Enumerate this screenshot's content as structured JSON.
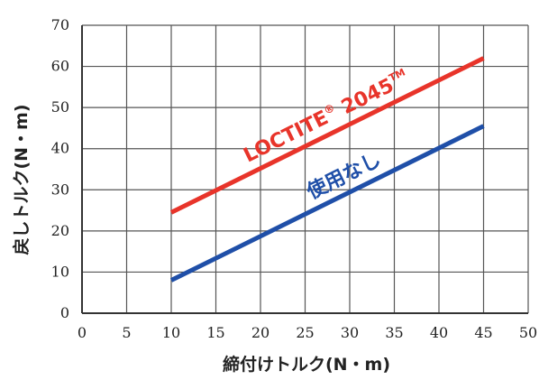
{
  "chart_data": {
    "type": "line",
    "xlabel": "締付けトルク(N・m)",
    "ylabel": "戻しトルク(N・m)",
    "xlim": [
      0,
      50
    ],
    "ylim": [
      0,
      70
    ],
    "xticks": [
      "0",
      "5",
      "10",
      "15",
      "20",
      "25",
      "30",
      "35",
      "40",
      "45",
      "50"
    ],
    "yticks": [
      "0",
      "10",
      "20",
      "30",
      "40",
      "50",
      "60",
      "70"
    ],
    "grid": true,
    "series": [
      {
        "name": "LOCTITE® 2045™",
        "label_text": "LOCTITE",
        "label_reg": "®",
        "label_num": " 2045",
        "label_tm": "TM",
        "color": "#e8342a",
        "x": [
          10,
          45
        ],
        "y": [
          24.5,
          62
        ]
      },
      {
        "name": "使用なし",
        "label_text": "使用なし",
        "color": "#1f4fa8",
        "x": [
          10,
          45
        ],
        "y": [
          8,
          45.5
        ]
      }
    ]
  }
}
